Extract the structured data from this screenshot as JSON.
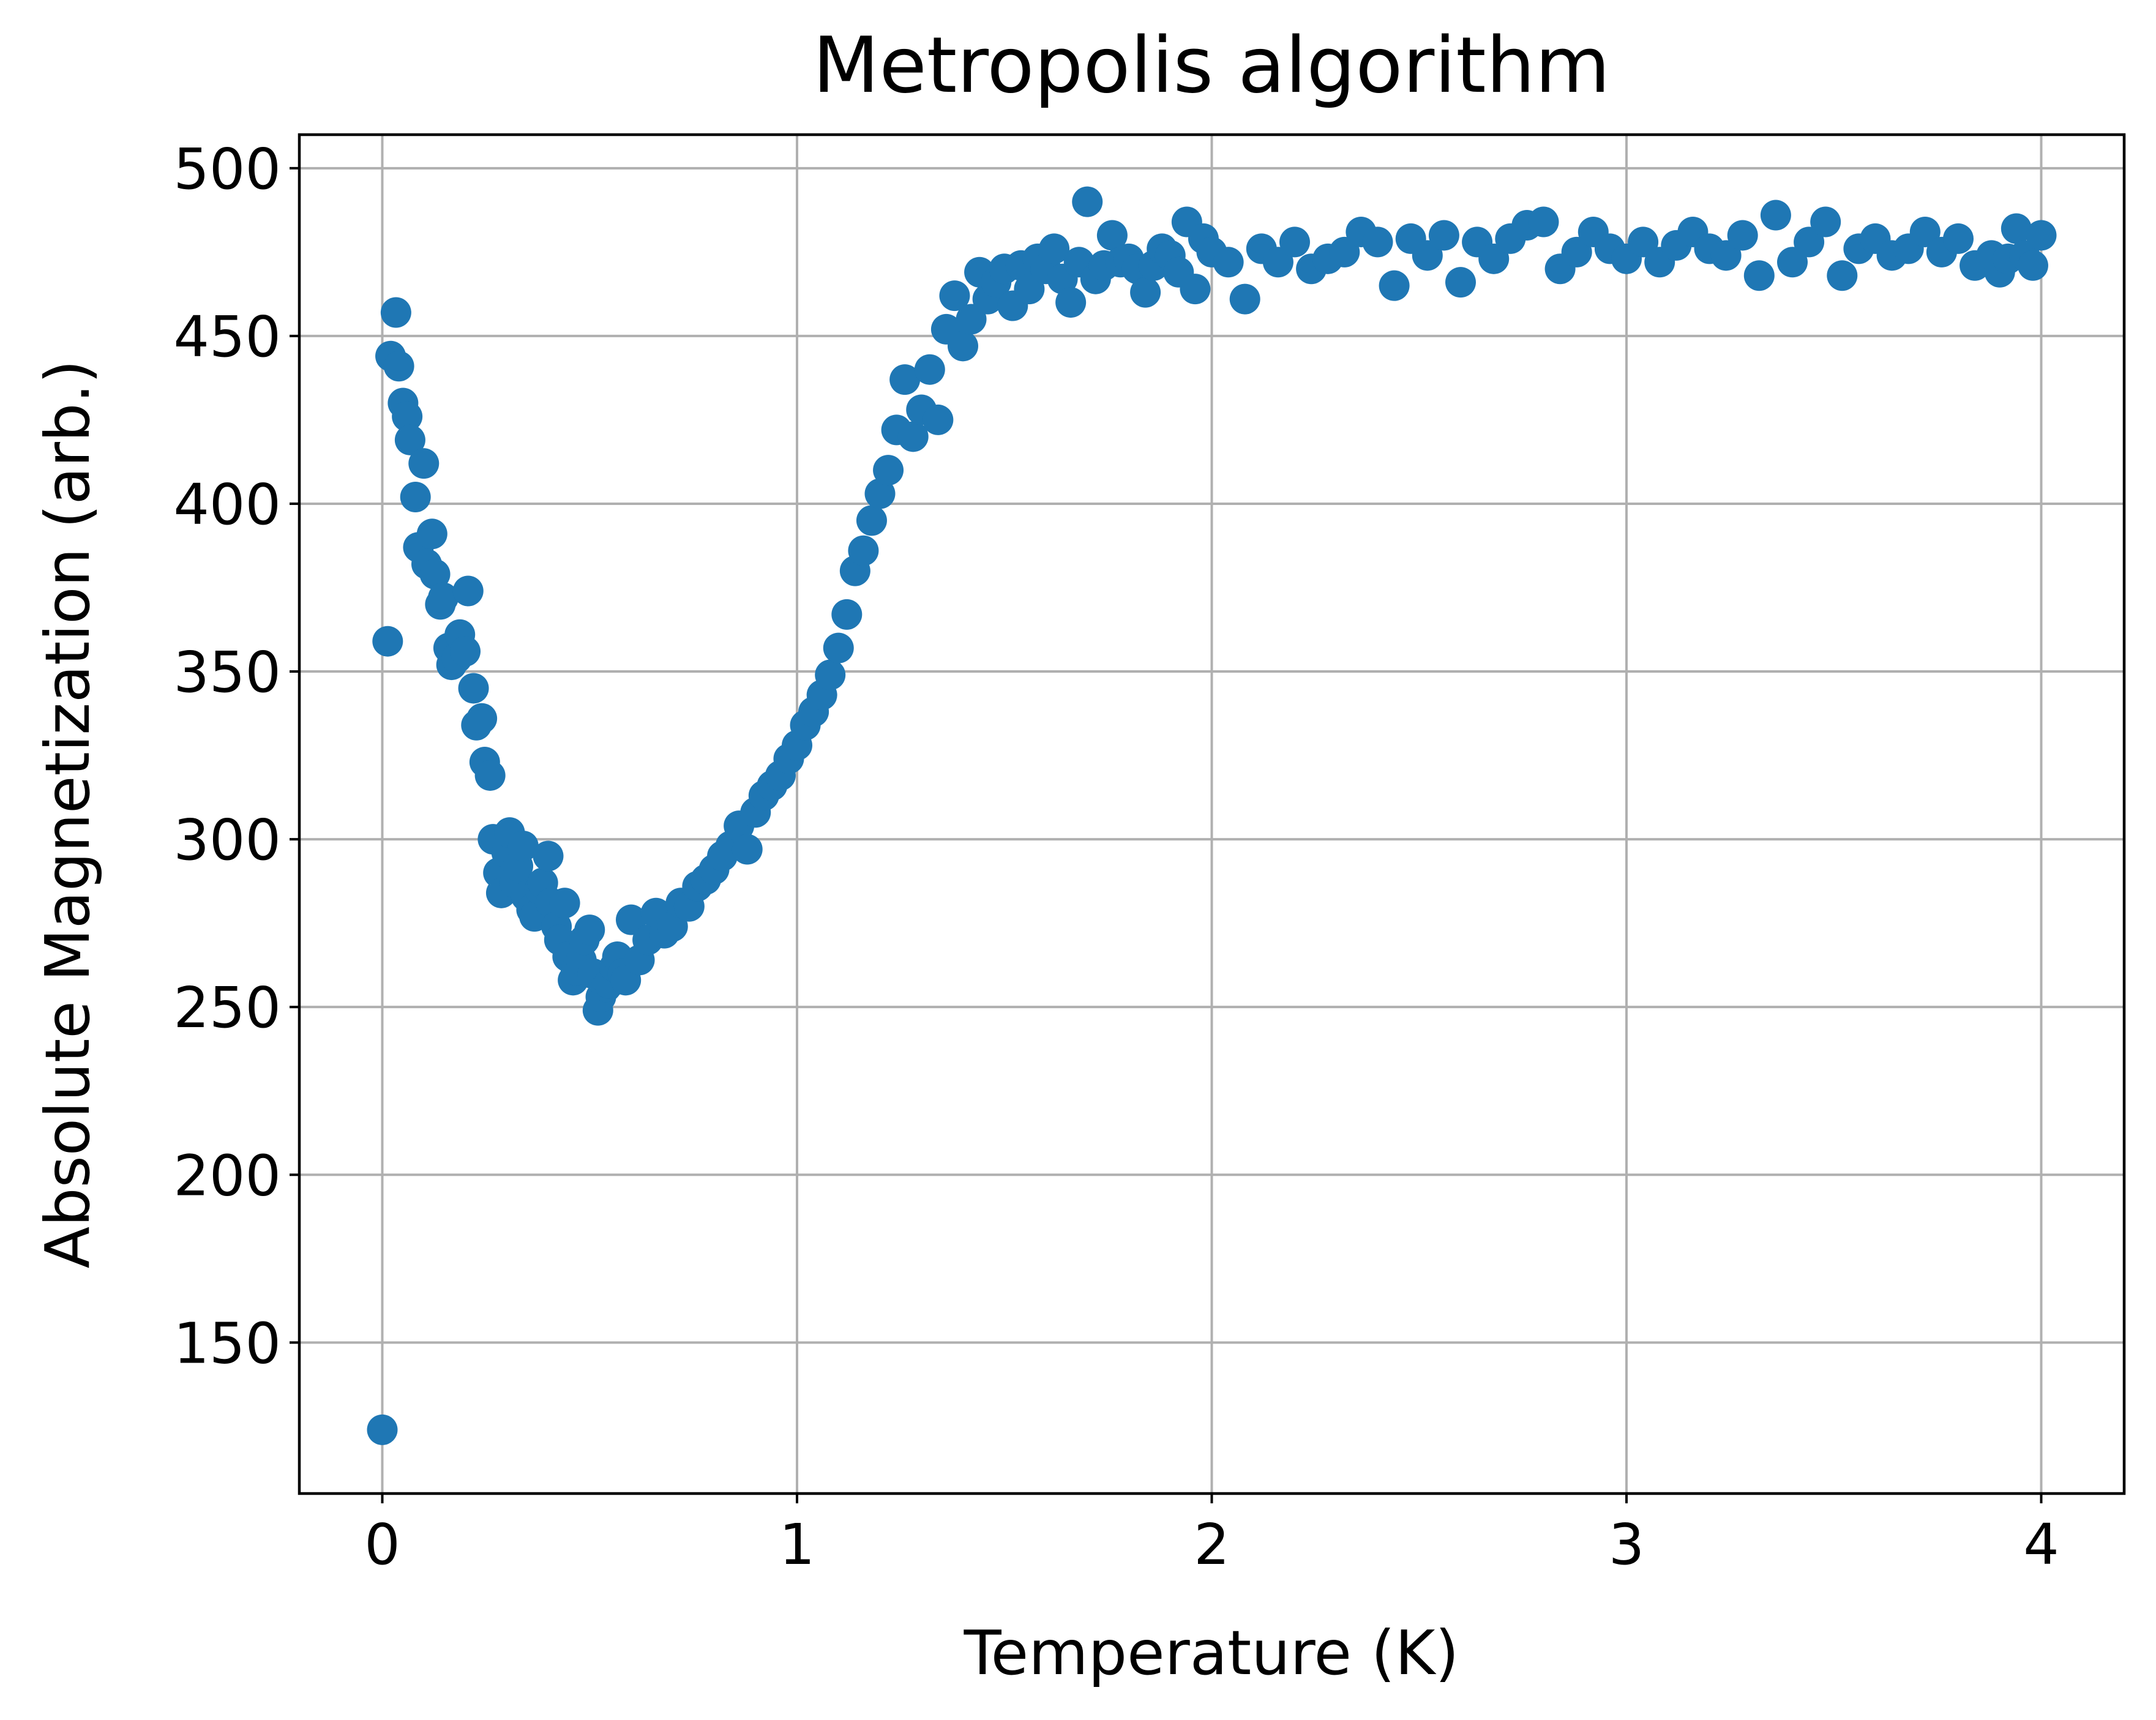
{
  "chart_data": {
    "type": "scatter",
    "title": "Metropolis algorithm",
    "xlabel": "Temperature (K)",
    "ylabel": "Absolute Magnetization (arb.)",
    "xlim": [
      -0.2,
      4.2
    ],
    "ylim": [
      105,
      510
    ],
    "xticks": [
      0,
      1,
      2,
      3,
      4
    ],
    "yticks": [
      150,
      200,
      250,
      300,
      350,
      400,
      450,
      500
    ],
    "xtick_labels": [
      "0",
      "1",
      "2",
      "3",
      "4"
    ],
    "ytick_labels": [
      "150",
      "200",
      "250",
      "300",
      "350",
      "400",
      "450",
      "500"
    ],
    "grid": true,
    "legend": "none",
    "marker_color": "#1f77b4",
    "series": [
      {
        "x": [
          0.0,
          0.013,
          0.02,
          0.033,
          0.04,
          0.05,
          0.06,
          0.067,
          0.08,
          0.087,
          0.1,
          0.107,
          0.12,
          0.127,
          0.14,
          0.147,
          0.16,
          0.167,
          0.18,
          0.187,
          0.2,
          0.207,
          0.22,
          0.227,
          0.24,
          0.247,
          0.26,
          0.267,
          0.28,
          0.287,
          0.3,
          0.307,
          0.32,
          0.327,
          0.34,
          0.347,
          0.36,
          0.367,
          0.38,
          0.387,
          0.4,
          0.407,
          0.42,
          0.427,
          0.44,
          0.447,
          0.46,
          0.467,
          0.48,
          0.487,
          0.5,
          0.507,
          0.52,
          0.527,
          0.54,
          0.547,
          0.56,
          0.567,
          0.58,
          0.587,
          0.6,
          0.62,
          0.64,
          0.66,
          0.68,
          0.7,
          0.72,
          0.74,
          0.76,
          0.78,
          0.8,
          0.82,
          0.84,
          0.86,
          0.88,
          0.9,
          0.92,
          0.94,
          0.96,
          0.98,
          1.0,
          1.02,
          1.04,
          1.06,
          1.08,
          1.1,
          1.12,
          1.14,
          1.16,
          1.18,
          1.2,
          1.22,
          1.24,
          1.26,
          1.28,
          1.3,
          1.32,
          1.34,
          1.36,
          1.38,
          1.4,
          1.42,
          1.44,
          1.46,
          1.48,
          1.5,
          1.52,
          1.54,
          1.56,
          1.58,
          1.6,
          1.62,
          1.64,
          1.66,
          1.68,
          1.7,
          1.72,
          1.74,
          1.76,
          1.78,
          1.8,
          1.82,
          1.84,
          1.86,
          1.88,
          1.9,
          1.92,
          1.94,
          1.96,
          1.98,
          2.0,
          2.04,
          2.08,
          2.12,
          2.16,
          2.2,
          2.24,
          2.28,
          2.32,
          2.36,
          2.4,
          2.44,
          2.48,
          2.52,
          2.56,
          2.6,
          2.64,
          2.68,
          2.72,
          2.76,
          2.8,
          2.84,
          2.88,
          2.92,
          2.96,
          3.0,
          3.04,
          3.08,
          3.12,
          3.16,
          3.2,
          3.24,
          3.28,
          3.32,
          3.36,
          3.4,
          3.44,
          3.48,
          3.52,
          3.56,
          3.6,
          3.64,
          3.68,
          3.72,
          3.76,
          3.8,
          3.84,
          3.88,
          3.9,
          3.92,
          3.94,
          3.96,
          3.98,
          4.0
        ],
        "y": [
          124,
          359,
          444,
          457,
          441,
          430,
          426,
          419,
          402,
          387,
          412,
          382,
          391,
          379,
          370,
          372,
          357,
          352,
          354,
          361,
          356,
          374,
          345,
          334,
          336,
          323,
          319,
          300,
          290,
          284,
          296,
          302,
          287,
          292,
          298,
          283,
          279,
          277,
          285,
          287,
          295,
          281,
          274,
          270,
          281,
          265,
          258,
          261,
          264,
          270,
          273,
          260,
          249,
          253,
          256,
          257,
          262,
          265,
          260,
          258,
          276,
          264,
          270,
          278,
          272,
          274,
          281,
          280,
          286,
          288,
          291,
          295,
          298,
          304,
          297,
          308,
          313,
          316,
          319,
          324,
          328,
          334,
          338,
          343,
          349,
          357,
          367,
          380,
          386,
          395,
          403,
          410,
          422,
          437,
          420,
          428,
          440,
          425,
          452,
          462,
          447,
          455,
          469,
          461,
          466,
          470,
          459,
          471,
          464,
          473,
          470,
          476,
          467,
          460,
          472,
          490,
          467,
          471,
          480,
          472,
          473,
          470,
          463,
          471,
          476,
          474,
          469,
          484,
          464,
          479,
          475,
          472,
          461,
          476,
          472,
          478,
          470,
          473,
          475,
          481,
          478,
          465,
          479,
          474,
          480,
          466,
          478,
          473,
          479,
          483,
          484,
          470,
          475,
          481,
          476,
          473,
          478,
          472,
          477,
          481,
          476,
          474,
          480,
          468,
          486,
          472,
          478,
          484,
          468,
          476,
          479,
          474,
          476,
          481,
          475,
          479,
          471,
          474,
          469,
          473,
          482,
          474,
          471,
          480
        ]
      }
    ]
  }
}
